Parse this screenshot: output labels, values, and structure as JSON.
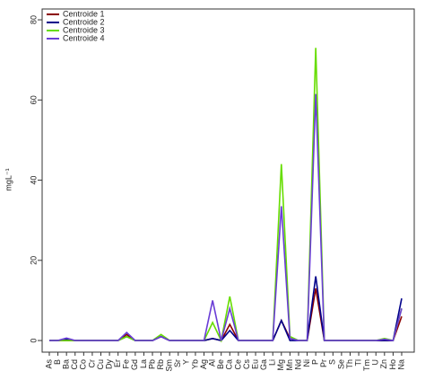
{
  "chart_data": {
    "type": "line",
    "y_label": "mgL⁻¹",
    "categories": [
      "As",
      "B",
      "Ba",
      "Cd",
      "Co",
      "Cr",
      "Cu",
      "Dy",
      "Er",
      "Fe",
      "Gd",
      "La",
      "Pb",
      "Rb",
      "Sm",
      "Sr",
      "Y",
      "Yb",
      "Ag",
      "Al",
      "Be",
      "Ca",
      "Ce",
      "Cs",
      "Eu",
      "Ga",
      "Li",
      "Mg",
      "Mn",
      "Nd",
      "Ni",
      "P",
      "Pr",
      "S",
      "Se",
      "Th",
      "Tl",
      "Tm",
      "U",
      "Zn",
      "Ho",
      "Na"
    ],
    "series": [
      {
        "name": "Centroide 1",
        "color": "#8b0000",
        "values": [
          0,
          0,
          0,
          0,
          0,
          0,
          0,
          0,
          0,
          1.5,
          0,
          0,
          0,
          1,
          0,
          0,
          0,
          0,
          0,
          0.5,
          0,
          4,
          0,
          0,
          0,
          0,
          0,
          5,
          0.5,
          0,
          0,
          13,
          0,
          0,
          0,
          0,
          0,
          0,
          0,
          0,
          0,
          6
        ]
      },
      {
        "name": "Centroide 2",
        "color": "#00008b",
        "values": [
          0,
          0,
          0.3,
          0,
          0,
          0,
          0,
          0,
          0,
          1,
          0,
          0,
          0,
          1,
          0,
          0,
          0,
          0,
          0,
          0.5,
          0,
          2.5,
          0,
          0,
          0,
          0,
          0,
          5,
          0,
          0,
          0,
          16,
          0,
          0,
          0,
          0,
          0,
          0,
          0,
          0,
          0,
          10.5
        ]
      },
      {
        "name": "Centroide 3",
        "color": "#66dd00",
        "values": [
          0,
          0,
          0,
          0,
          0,
          0,
          0,
          0,
          0,
          1,
          0,
          0,
          0,
          1.5,
          0,
          0,
          0,
          0,
          0,
          4.5,
          0,
          11,
          0,
          0,
          0,
          0,
          0,
          44,
          1,
          0,
          0,
          73,
          0,
          0,
          0,
          0,
          0,
          0,
          0,
          0.5,
          0,
          8
        ]
      },
      {
        "name": "Centroide 4",
        "color": "#6a3dd6",
        "values": [
          0,
          0,
          0.6,
          0,
          0,
          0,
          0,
          0,
          0,
          2,
          0,
          0,
          0,
          1,
          0,
          0,
          0,
          0,
          0,
          10,
          0,
          8,
          0,
          0,
          0,
          0,
          0,
          33.5,
          0.5,
          0,
          0,
          61.5,
          0,
          0,
          0,
          0,
          0,
          0,
          0,
          0.3,
          0,
          8
        ]
      }
    ],
    "ylim": [
      -2.9,
      82.7
    ],
    "yticks": [
      0,
      20,
      40,
      60,
      80
    ],
    "legend": "top-left"
  }
}
